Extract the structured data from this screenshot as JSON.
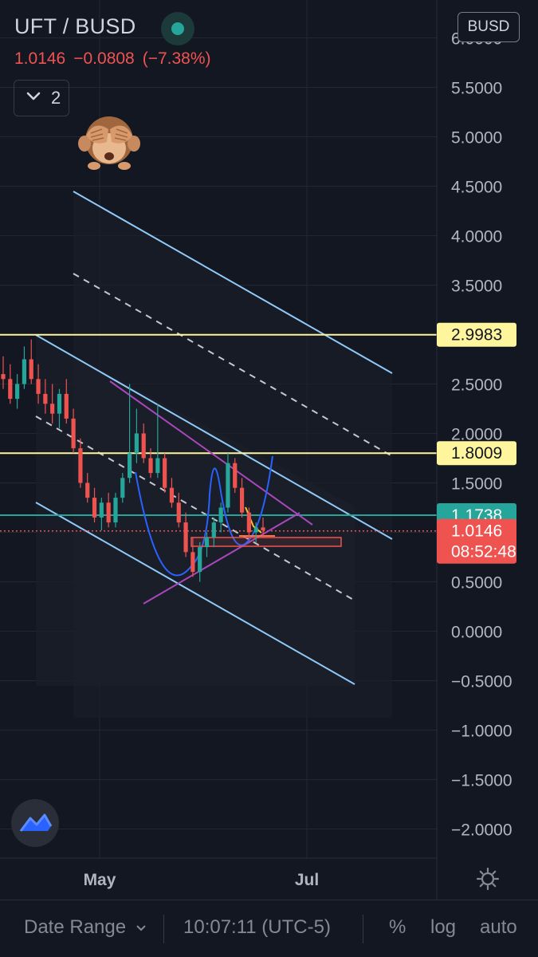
{
  "header": {
    "symbol": "UFT / BUSD",
    "last_price": "1.0146",
    "change": "−0.0808",
    "change_pct": "(−7.38%)",
    "collapse_count": "2",
    "currency_button": "BUSD",
    "live_color": "#26a69a",
    "down_color": "#ef5350"
  },
  "chart_data": {
    "type": "candlestick",
    "title": "UFT / BUSD",
    "y_ticks": [
      "6.0000",
      "5.5000",
      "5.0000",
      "4.5000",
      "4.0000",
      "3.5000",
      "2.5000",
      "2.0000",
      "1.5000",
      "0.5000",
      "0.0000",
      "−0.5000",
      "−1.0000",
      "−1.5000",
      "−2.0000"
    ],
    "x_ticks": [
      "May",
      "Jul"
    ],
    "ylim": [
      -2.25,
      6.3
    ],
    "grid": true,
    "price_labels": [
      {
        "name": "level-high",
        "value": "2.9983",
        "bg": "#fff59d",
        "fg": "#131722"
      },
      {
        "name": "level-mid",
        "value": "1.8009",
        "bg": "#fff59d",
        "fg": "#131722"
      },
      {
        "name": "level-support",
        "value": "1.1738",
        "bg": "#26a69a",
        "fg": "#ffffff"
      },
      {
        "name": "last-price",
        "value": "1.0146",
        "countdown": "08:52:48",
        "bg": "#ef5350",
        "fg": "#ffffff"
      }
    ],
    "horizontal_levels": [
      2.9983,
      1.8009,
      1.1738,
      1.0146
    ],
    "candles_approx": [
      [
        2.6,
        2.78,
        2.45,
        2.55
      ],
      [
        2.55,
        2.7,
        2.3,
        2.35
      ],
      [
        2.35,
        2.6,
        2.25,
        2.5
      ],
      [
        2.5,
        2.88,
        2.45,
        2.75
      ],
      [
        2.75,
        2.95,
        2.5,
        2.55
      ],
      [
        2.55,
        2.7,
        2.3,
        2.4
      ],
      [
        2.4,
        2.55,
        2.2,
        2.3
      ],
      [
        2.3,
        2.5,
        2.1,
        2.2
      ],
      [
        2.2,
        2.45,
        2.05,
        2.4
      ],
      [
        2.4,
        2.55,
        2.1,
        2.15
      ],
      [
        2.15,
        2.25,
        1.8,
        1.85
      ],
      [
        1.85,
        1.95,
        1.45,
        1.5
      ],
      [
        1.5,
        1.6,
        1.3,
        1.35
      ],
      [
        1.35,
        1.45,
        1.1,
        1.15
      ],
      [
        1.15,
        1.35,
        1.02,
        1.3
      ],
      [
        1.3,
        1.4,
        1.05,
        1.1
      ],
      [
        1.1,
        1.4,
        1.05,
        1.35
      ],
      [
        1.35,
        1.6,
        1.3,
        1.55
      ],
      [
        1.55,
        2.5,
        1.5,
        1.8
      ],
      [
        1.8,
        2.25,
        1.7,
        2.0
      ],
      [
        2.0,
        2.1,
        1.7,
        1.75
      ],
      [
        1.75,
        1.85,
        1.55,
        1.6
      ],
      [
        1.6,
        2.3,
        1.55,
        1.75
      ],
      [
        1.75,
        1.8,
        1.4,
        1.45
      ],
      [
        1.45,
        1.55,
        1.25,
        1.3
      ],
      [
        1.3,
        1.4,
        1.05,
        1.1
      ],
      [
        1.1,
        1.2,
        0.75,
        0.8
      ],
      [
        0.8,
        0.95,
        0.55,
        0.6
      ],
      [
        0.6,
        0.9,
        0.5,
        0.85
      ],
      [
        0.85,
        1.0,
        0.75,
        0.95
      ],
      [
        0.95,
        1.15,
        0.85,
        1.1
      ],
      [
        1.1,
        1.3,
        1.0,
        1.25
      ],
      [
        1.25,
        1.8,
        1.2,
        1.7
      ],
      [
        1.7,
        1.75,
        1.4,
        1.45
      ],
      [
        1.45,
        1.55,
        1.15,
        1.2
      ],
      [
        1.2,
        1.25,
        0.95,
        1.0
      ],
      [
        1.0,
        1.1,
        0.9,
        1.05
      ],
      [
        1.05,
        1.15,
        0.95,
        1.02
      ]
    ]
  },
  "footer": {
    "date_range": "Date Range",
    "time": "10:07:11 (UTC-5)",
    "percent": "%",
    "log": "log",
    "auto": "auto"
  }
}
